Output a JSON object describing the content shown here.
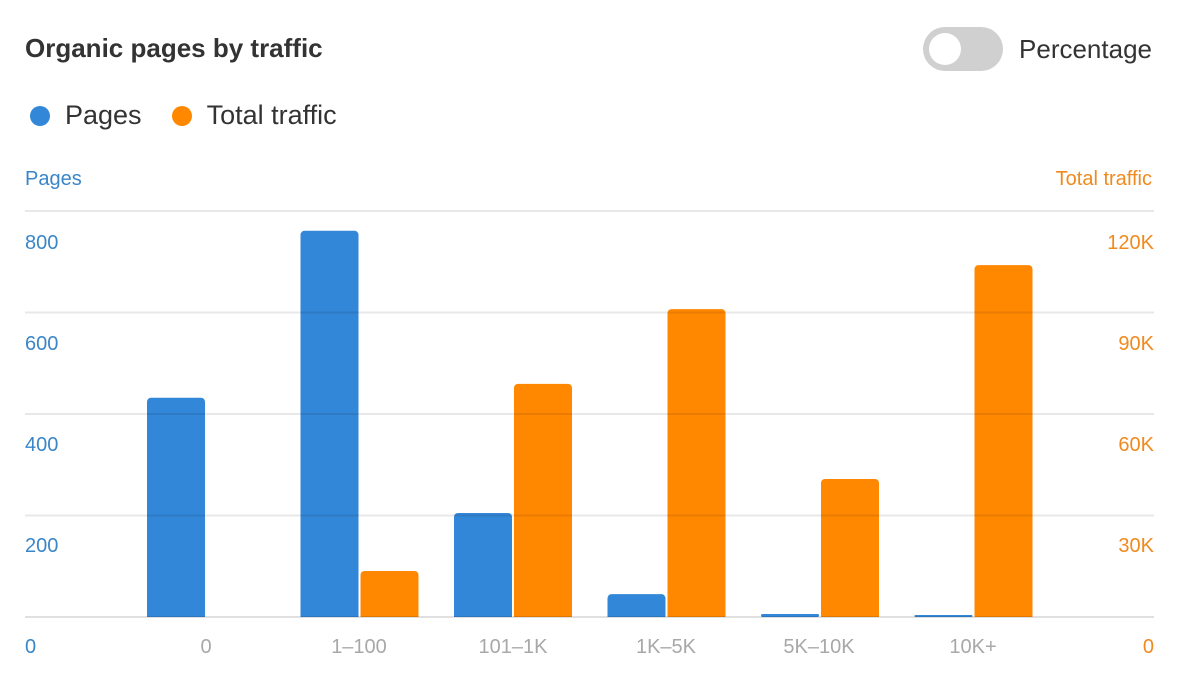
{
  "header": {
    "title": "Organic pages by traffic",
    "toggle": {
      "label": "Percentage",
      "checked": false
    }
  },
  "legend": [
    {
      "label": "Pages",
      "color": "#3387d8"
    },
    {
      "label": "Total traffic",
      "color": "#ff8800"
    }
  ],
  "axes": {
    "left_title": "Pages",
    "right_title": "Total traffic",
    "left_ticks": [
      "800",
      "600",
      "400",
      "200",
      "0"
    ],
    "right_ticks": [
      "120K",
      "90K",
      "60K",
      "30K",
      "0"
    ],
    "left_color": "#3a86c8",
    "right_color": "#f08a1e"
  },
  "chart_data": {
    "type": "bar",
    "title": "Organic pages by traffic",
    "categories": [
      "0",
      "1–100",
      "101–1K",
      "1K–5K",
      "5K–10K",
      "10K+"
    ],
    "series": [
      {
        "name": "Pages",
        "axis": "left",
        "color": "#3387d8",
        "values": [
          432,
          761,
          205,
          45,
          6,
          4
        ]
      },
      {
        "name": "Total traffic",
        "axis": "right",
        "color": "#ff8800",
        "values": [
          0,
          13600,
          68900,
          91000,
          40800,
          104000
        ]
      }
    ],
    "xlabel": "",
    "ylabel": "Pages",
    "y2label": "Total traffic",
    "ylim": [
      0,
      800
    ],
    "y2lim": [
      0,
      120000
    ],
    "grid": true,
    "legend_position": "top-left"
  }
}
